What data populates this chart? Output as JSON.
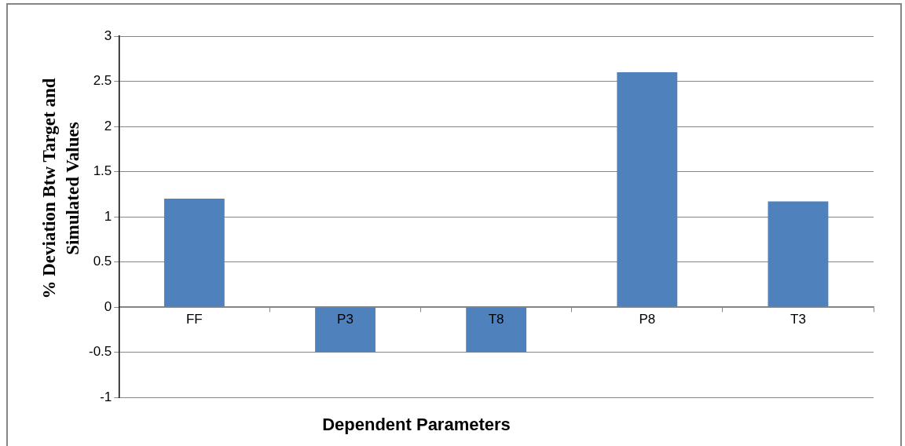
{
  "chart_data": {
    "type": "bar",
    "xlabel": "Dependent Parameters",
    "ylabel": "% Deviation Btw Target and Simulated Values",
    "categories": [
      "FF",
      "P3",
      "T8",
      "P8",
      "T3"
    ],
    "values": [
      1.2,
      -0.5,
      -0.5,
      2.6,
      1.17
    ],
    "color": "#4f81bd",
    "ylim": [
      -1,
      3
    ],
    "yticks": [
      -1,
      -0.5,
      0,
      0.5,
      1,
      1.5,
      2,
      2.5,
      3
    ],
    "grid": "y",
    "legend": false
  }
}
